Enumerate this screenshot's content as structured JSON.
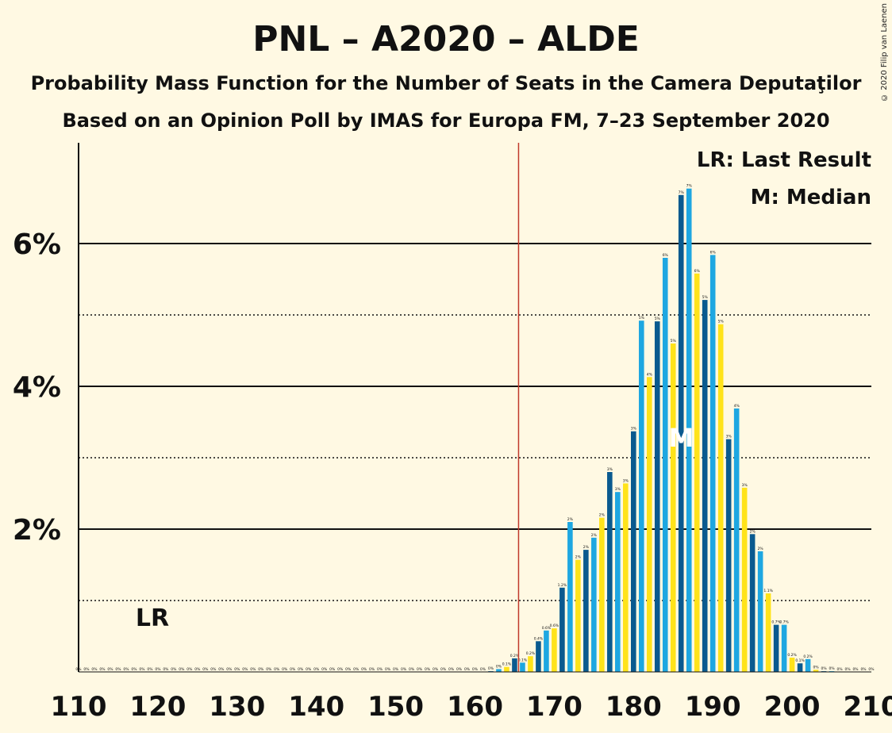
{
  "chart_data": {
    "type": "bar",
    "title": "PNL – A2020 – ALDE",
    "subtitle": "Probability Mass Function for the Number of Seats in the Camera Deputaţilor",
    "subtitle2": "Based on an Opinion Poll by IMAS for Europa FM, 7–23 September 2020",
    "copyright": "© 2020 Filip van Laenen",
    "xlim": [
      110,
      210
    ],
    "ylim": [
      0,
      7.4
    ],
    "x_ticks": [
      "110",
      "120",
      "130",
      "140",
      "150",
      "160",
      "170",
      "180",
      "190",
      "200",
      "210"
    ],
    "y_ticks": [
      {
        "value": 2,
        "label": "2%"
      },
      {
        "value": 4,
        "label": "4%"
      },
      {
        "value": 6,
        "label": "6%"
      }
    ],
    "minor_gridlines": [
      1,
      3,
      5
    ],
    "legend": {
      "placement": "top-right",
      "items": [
        "LR: Last Result",
        "M: Median"
      ]
    },
    "last_result": {
      "seat": 118,
      "label": "LR"
    },
    "majority_line": 166,
    "median": {
      "seat": 186,
      "label": "M"
    },
    "colors": {
      "background": "#FFF9E3",
      "blue_light": "#1EA7E1",
      "blue_dark": "#0A5A8F",
      "yellow": "#FFE31A",
      "majority_line": "#C0392B",
      "text": "#111111"
    },
    "bars": [
      {
        "seat": 110,
        "value": 0,
        "label": "0%"
      },
      {
        "seat": 111,
        "value": 0,
        "label": "0%"
      },
      {
        "seat": 112,
        "value": 0,
        "label": "0%"
      },
      {
        "seat": 113,
        "value": 0,
        "label": "0%"
      },
      {
        "seat": 114,
        "value": 0,
        "label": "0%"
      },
      {
        "seat": 115,
        "value": 0,
        "label": "0%"
      },
      {
        "seat": 116,
        "value": 0,
        "label": "0%"
      },
      {
        "seat": 117,
        "value": 0,
        "label": "0%"
      },
      {
        "seat": 118,
        "value": 0,
        "label": "0%"
      },
      {
        "seat": 119,
        "value": 0,
        "label": "0%"
      },
      {
        "seat": 120,
        "value": 0,
        "label": "0%"
      },
      {
        "seat": 121,
        "value": 0,
        "label": "0%"
      },
      {
        "seat": 122,
        "value": 0,
        "label": "0%"
      },
      {
        "seat": 123,
        "value": 0,
        "label": "0%"
      },
      {
        "seat": 124,
        "value": 0,
        "label": "0%"
      },
      {
        "seat": 125,
        "value": 0,
        "label": "0%"
      },
      {
        "seat": 126,
        "value": 0,
        "label": "0%"
      },
      {
        "seat": 127,
        "value": 0,
        "label": "0%"
      },
      {
        "seat": 128,
        "value": 0,
        "label": "0%"
      },
      {
        "seat": 129,
        "value": 0,
        "label": "0%"
      },
      {
        "seat": 130,
        "value": 0,
        "label": "0%"
      },
      {
        "seat": 131,
        "value": 0,
        "label": "0%"
      },
      {
        "seat": 132,
        "value": 0,
        "label": "0%"
      },
      {
        "seat": 133,
        "value": 0,
        "label": "0%"
      },
      {
        "seat": 134,
        "value": 0,
        "label": "0%"
      },
      {
        "seat": 135,
        "value": 0,
        "label": "0%"
      },
      {
        "seat": 136,
        "value": 0,
        "label": "0%"
      },
      {
        "seat": 137,
        "value": 0,
        "label": "0%"
      },
      {
        "seat": 138,
        "value": 0,
        "label": "0%"
      },
      {
        "seat": 139,
        "value": 0,
        "label": "0%"
      },
      {
        "seat": 140,
        "value": 0,
        "label": "0%"
      },
      {
        "seat": 141,
        "value": 0,
        "label": "0%"
      },
      {
        "seat": 142,
        "value": 0,
        "label": "0%"
      },
      {
        "seat": 143,
        "value": 0,
        "label": "0%"
      },
      {
        "seat": 144,
        "value": 0,
        "label": "0%"
      },
      {
        "seat": 145,
        "value": 0,
        "label": "0%"
      },
      {
        "seat": 146,
        "value": 0,
        "label": "0%"
      },
      {
        "seat": 147,
        "value": 0,
        "label": "0%"
      },
      {
        "seat": 148,
        "value": 0,
        "label": "0%"
      },
      {
        "seat": 149,
        "value": 0,
        "label": "0%"
      },
      {
        "seat": 150,
        "value": 0,
        "label": "0%"
      },
      {
        "seat": 151,
        "value": 0,
        "label": "0%"
      },
      {
        "seat": 152,
        "value": 0,
        "label": "0%"
      },
      {
        "seat": 153,
        "value": 0,
        "label": "0%"
      },
      {
        "seat": 154,
        "value": 0,
        "label": "0%"
      },
      {
        "seat": 155,
        "value": 0,
        "label": "0%"
      },
      {
        "seat": 156,
        "value": 0,
        "label": "0%"
      },
      {
        "seat": 157,
        "value": 0,
        "label": "0%"
      },
      {
        "seat": 158,
        "value": 0,
        "label": "0%"
      },
      {
        "seat": 159,
        "value": 0,
        "label": "0%"
      },
      {
        "seat": 160,
        "value": 0,
        "label": "0%"
      },
      {
        "seat": 161,
        "value": 0,
        "label": "0%"
      },
      {
        "seat": 162,
        "value": 0.01,
        "label": "0%"
      },
      {
        "seat": 163,
        "value": 0.04,
        "label": "0%"
      },
      {
        "seat": 164,
        "value": 0.07,
        "label": "0.1%"
      },
      {
        "seat": 165,
        "value": 0.19,
        "label": "0.2%"
      },
      {
        "seat": 166,
        "value": 0.13,
        "label": "0.1%"
      },
      {
        "seat": 167,
        "value": 0.22,
        "label": "0.2%"
      },
      {
        "seat": 168,
        "value": 0.43,
        "label": "0.4%"
      },
      {
        "seat": 169,
        "value": 0.58,
        "label": "0.6%"
      },
      {
        "seat": 170,
        "value": 0.61,
        "label": "0.6%"
      },
      {
        "seat": 171,
        "value": 1.18,
        "label": "1.2%"
      },
      {
        "seat": 172,
        "value": 2.1,
        "label": "2%"
      },
      {
        "seat": 173,
        "value": 1.57,
        "label": "2%"
      },
      {
        "seat": 174,
        "value": 1.71,
        "label": "2%"
      },
      {
        "seat": 175,
        "value": 1.88,
        "label": "2%"
      },
      {
        "seat": 176,
        "value": 2.16,
        "label": "2%"
      },
      {
        "seat": 177,
        "value": 2.8,
        "label": "3%"
      },
      {
        "seat": 178,
        "value": 2.52,
        "label": "3%"
      },
      {
        "seat": 179,
        "value": 2.64,
        "label": "3%"
      },
      {
        "seat": 180,
        "value": 3.37,
        "label": "3%"
      },
      {
        "seat": 181,
        "value": 4.92,
        "label": "5%"
      },
      {
        "seat": 182,
        "value": 4.13,
        "label": "4%"
      },
      {
        "seat": 183,
        "value": 4.91,
        "label": "5%"
      },
      {
        "seat": 184,
        "value": 5.8,
        "label": "6%"
      },
      {
        "seat": 185,
        "value": 4.6,
        "label": "5%"
      },
      {
        "seat": 186,
        "value": 6.68,
        "label": "7%"
      },
      {
        "seat": 187,
        "value": 6.77,
        "label": "7%"
      },
      {
        "seat": 188,
        "value": 5.58,
        "label": "6%"
      },
      {
        "seat": 189,
        "value": 5.21,
        "label": "5%"
      },
      {
        "seat": 190,
        "value": 5.84,
        "label": "6%"
      },
      {
        "seat": 191,
        "value": 4.87,
        "label": "5%"
      },
      {
        "seat": 192,
        "value": 3.26,
        "label": "3%"
      },
      {
        "seat": 193,
        "value": 3.69,
        "label": "4%"
      },
      {
        "seat": 194,
        "value": 2.58,
        "label": "3%"
      },
      {
        "seat": 195,
        "value": 1.93,
        "label": "2%"
      },
      {
        "seat": 196,
        "value": 1.69,
        "label": "2%"
      },
      {
        "seat": 197,
        "value": 1.1,
        "label": "1.1%"
      },
      {
        "seat": 198,
        "value": 0.66,
        "label": "0.7%"
      },
      {
        "seat": 199,
        "value": 0.66,
        "label": "0.7%"
      },
      {
        "seat": 200,
        "value": 0.2,
        "label": "0.2%"
      },
      {
        "seat": 201,
        "value": 0.12,
        "label": "0.1%"
      },
      {
        "seat": 202,
        "value": 0.18,
        "label": "0.2%"
      },
      {
        "seat": 203,
        "value": 0.03,
        "label": "0%"
      },
      {
        "seat": 204,
        "value": 0.01,
        "label": "0%"
      },
      {
        "seat": 205,
        "value": 0.01,
        "label": "0%"
      },
      {
        "seat": 206,
        "value": 0,
        "label": "0%"
      },
      {
        "seat": 207,
        "value": 0,
        "label": "0%"
      },
      {
        "seat": 208,
        "value": 0,
        "label": "0%"
      },
      {
        "seat": 209,
        "value": 0,
        "label": "0%"
      },
      {
        "seat": 210,
        "value": 0,
        "label": "0%"
      }
    ]
  }
}
